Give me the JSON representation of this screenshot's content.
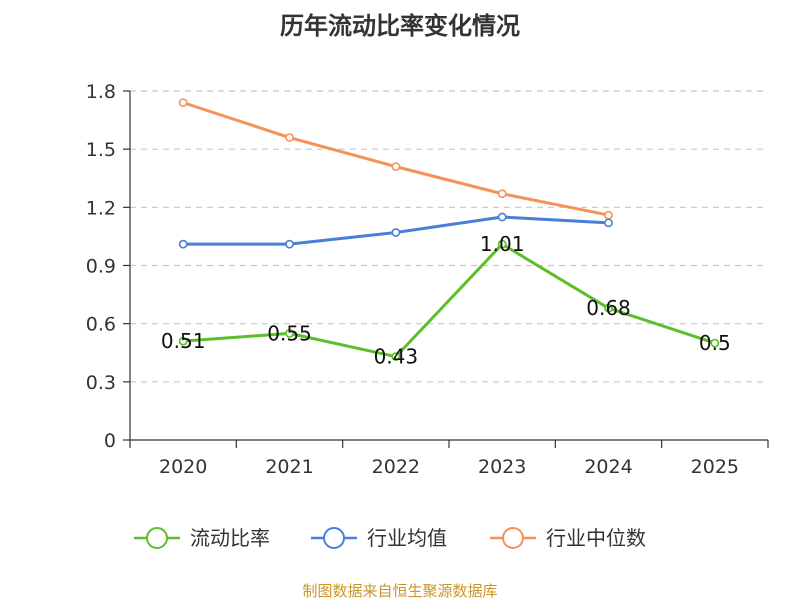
{
  "chart_data": {
    "type": "line",
    "title": "历年流动比率变化情况",
    "categories": [
      "2020",
      "2021",
      "2022",
      "2023",
      "2024",
      "2025"
    ],
    "ylim": [
      0,
      1.8
    ],
    "yticks": [
      "0",
      "0.3",
      "0.6",
      "0.9",
      "1.2",
      "1.5",
      "1.8"
    ],
    "grid": true,
    "legend_position": "bottom",
    "series": [
      {
        "name": "流动比率",
        "color": "#5cbf2a",
        "values": [
          0.51,
          0.55,
          0.43,
          1.01,
          0.68,
          0.5
        ],
        "labels": [
          "0.51",
          "0.55",
          "0.43",
          "1.01",
          "0.68",
          "0.5"
        ]
      },
      {
        "name": "行业均值",
        "color": "#4a7fd8",
        "values": [
          1.01,
          1.01,
          1.07,
          1.15,
          1.12,
          null
        ]
      },
      {
        "name": "行业中位数",
        "color": "#f5925a",
        "values": [
          1.74,
          1.56,
          1.41,
          1.27,
          1.16,
          null
        ]
      }
    ],
    "source": "制图数据来自恒生聚源数据库"
  }
}
